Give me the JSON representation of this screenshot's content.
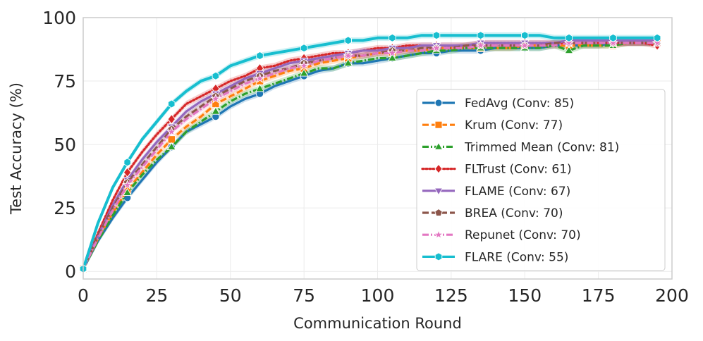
{
  "chart_data": {
    "type": "line",
    "title": "",
    "xlabel": "Communication Round",
    "ylabel": "Test Accuracy (%)",
    "xlim": [
      0,
      200
    ],
    "ylim": [
      -3,
      100
    ],
    "xticks": [
      0,
      25,
      50,
      75,
      100,
      125,
      150,
      175,
      200
    ],
    "yticks": [
      0,
      25,
      50,
      75,
      100
    ],
    "grid": true,
    "legend_position": "center-right",
    "x": [
      0,
      5,
      10,
      15,
      20,
      25,
      30,
      35,
      40,
      45,
      50,
      55,
      60,
      65,
      70,
      75,
      80,
      85,
      90,
      95,
      100,
      105,
      110,
      115,
      120,
      125,
      130,
      135,
      140,
      145,
      150,
      155,
      160,
      165,
      170,
      175,
      180,
      185,
      190,
      195
    ],
    "series": [
      {
        "name": "FedAvg (Conv: 85)",
        "color": "#1f77b4",
        "dash": "solid",
        "marker": "circle",
        "values": [
          1,
          12,
          21,
          29,
          36,
          43,
          49,
          55,
          58,
          61,
          65,
          68,
          70,
          73,
          75,
          77,
          79,
          80,
          82,
          82,
          83,
          84,
          85,
          86,
          86,
          87,
          87,
          87,
          88,
          88,
          88,
          88,
          89,
          89,
          89,
          89,
          90,
          90,
          90,
          90
        ]
      },
      {
        "name": "Krum (Conv: 77)",
        "color": "#ff7f0e",
        "dash": "dashed",
        "marker": "square",
        "values": [
          1,
          13,
          23,
          32,
          39,
          46,
          52,
          57,
          61,
          66,
          69,
          72,
          75,
          77,
          79,
          80,
          82,
          83,
          84,
          85,
          86,
          86,
          87,
          87,
          88,
          88,
          88,
          88,
          88,
          88,
          89,
          89,
          89,
          89,
          89,
          89,
          89,
          90,
          90,
          90
        ]
      },
      {
        "name": "Trimmed Mean (Conv: 81)",
        "color": "#2ca02c",
        "dash": "dashdot",
        "marker": "triangle-up",
        "values": [
          1,
          12,
          22,
          31,
          38,
          44,
          49,
          55,
          59,
          63,
          67,
          70,
          72,
          74,
          76,
          78,
          80,
          80,
          82,
          83,
          84,
          84,
          85,
          86,
          87,
          87,
          88,
          88,
          88,
          88,
          88,
          88,
          89,
          87,
          89,
          89,
          89,
          90,
          90,
          90
        ]
      },
      {
        "name": "FLTrust (Conv: 61)",
        "color": "#d62728",
        "dash": "dotted",
        "marker": "diamond",
        "values": [
          1,
          15,
          28,
          39,
          47,
          54,
          60,
          66,
          69,
          72,
          75,
          77,
          80,
          81,
          83,
          84,
          85,
          86,
          86,
          87,
          88,
          88,
          89,
          89,
          89,
          89,
          89,
          90,
          90,
          90,
          90,
          90,
          90,
          90,
          90,
          90,
          90,
          90,
          90,
          89
        ]
      },
      {
        "name": "FLAME (Conv: 67)",
        "color": "#9467bd",
        "dash": "solid",
        "marker": "triangle-down",
        "values": [
          1,
          14,
          26,
          36,
          44,
          51,
          57,
          63,
          67,
          70,
          73,
          76,
          78,
          80,
          82,
          83,
          84,
          85,
          86,
          87,
          87,
          88,
          88,
          89,
          89,
          89,
          89,
          90,
          90,
          90,
          90,
          90,
          90,
          91,
          91,
          91,
          91,
          91,
          91,
          91
        ]
      },
      {
        "name": "BREA (Conv: 70)",
        "color": "#8c564b",
        "dash": "dashed",
        "marker": "pentagon",
        "values": [
          1,
          14,
          25,
          35,
          42,
          49,
          56,
          61,
          65,
          69,
          72,
          75,
          77,
          79,
          80,
          82,
          83,
          84,
          85,
          85,
          86,
          87,
          87,
          88,
          88,
          88,
          89,
          89,
          89,
          89,
          89,
          89,
          90,
          90,
          90,
          90,
          90,
          90,
          90,
          90
        ]
      },
      {
        "name": "Repunet (Conv: 70)",
        "color": "#e377c2",
        "dash": "dashdot",
        "marker": "star",
        "values": [
          1,
          13,
          24,
          34,
          41,
          48,
          55,
          60,
          64,
          68,
          71,
          74,
          76,
          78,
          80,
          81,
          83,
          84,
          85,
          85,
          86,
          86,
          87,
          87,
          88,
          88,
          88,
          89,
          89,
          89,
          89,
          89,
          89,
          90,
          90,
          90,
          90,
          90,
          90,
          90
        ]
      },
      {
        "name": "FLARE (Conv: 55)",
        "color": "#17becf",
        "dash": "solid",
        "marker": "hexagon",
        "values": [
          1,
          19,
          33,
          43,
          52,
          59,
          66,
          71,
          75,
          77,
          81,
          83,
          85,
          86,
          87,
          88,
          89,
          90,
          91,
          91,
          92,
          92,
          92,
          93,
          93,
          93,
          93,
          93,
          93,
          93,
          93,
          93,
          92,
          92,
          92,
          92,
          92,
          92,
          92,
          92
        ]
      }
    ]
  }
}
